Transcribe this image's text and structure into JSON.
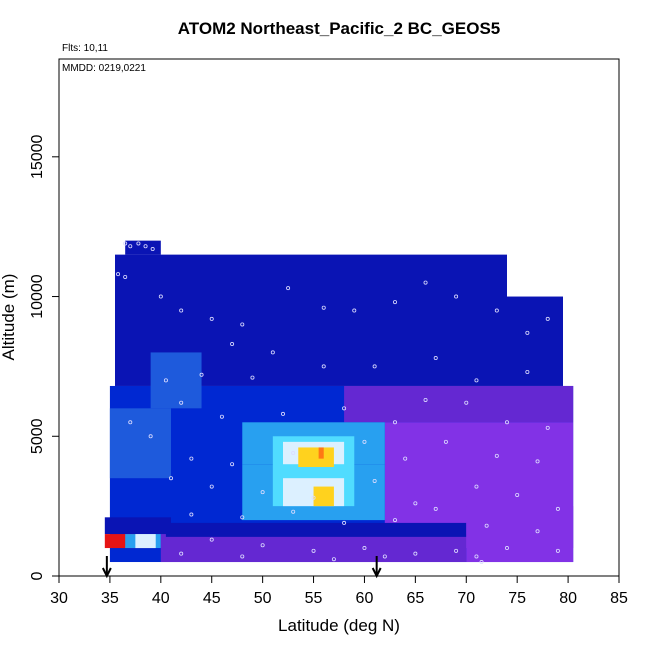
{
  "chart_data": {
    "type": "heatmap",
    "title": "ATOM2 Northeast_Pacific_2 BC_GEOS5",
    "annotations": [
      "Flts: 10,11",
      "MMDD: 0219,0221"
    ],
    "xlabel": "Latitude (deg N)",
    "ylabel": "Altitude (m)",
    "xlim": [
      30,
      85
    ],
    "ylim": [
      0,
      18500
    ],
    "xticks": [
      "30",
      "35",
      "40",
      "45",
      "50",
      "55",
      "60",
      "65",
      "70",
      "75",
      "80",
      "85"
    ],
    "yticks": [
      "0",
      "5000",
      "10000",
      "15000"
    ],
    "ytick_values": [
      0,
      5000,
      10000,
      15000
    ],
    "grid": false,
    "arrows_at_latitude": [
      34.7,
      61.2
    ],
    "colors": {
      "dark_blue": "#0a14b4",
      "blue": "#0028d2",
      "mid_blue": "#1e5adc",
      "light_blue": "#28a0f0",
      "cyan": "#50dcff",
      "pale": "#dcf0ff",
      "yellow": "#ffd21e",
      "orange": "#ff7814",
      "red": "#e61414",
      "purple": "#6428d2",
      "violet": "#8232e6",
      "marker": "#dcdcff"
    },
    "regions": [
      {
        "lat": [
          35.5,
          74.0
        ],
        "alt": [
          6800,
          11500
        ],
        "color": "dark_blue"
      },
      {
        "lat": [
          36.5,
          40.0
        ],
        "alt": [
          11500,
          12000
        ],
        "color": "dark_blue"
      },
      {
        "lat": [
          74.0,
          79.5
        ],
        "alt": [
          6800,
          10000
        ],
        "color": "dark_blue"
      },
      {
        "lat": [
          35.0,
          80.5
        ],
        "alt": [
          500,
          6800
        ],
        "color": "blue"
      },
      {
        "lat": [
          39.0,
          44.0
        ],
        "alt": [
          6000,
          8000
        ],
        "color": "mid_blue"
      },
      {
        "lat": [
          58.0,
          80.5
        ],
        "alt": [
          5500,
          6800
        ],
        "color": "purple"
      },
      {
        "lat": [
          62.0,
          80.5
        ],
        "alt": [
          1000,
          5500
        ],
        "color": "violet"
      },
      {
        "lat": [
          48.0,
          62.0
        ],
        "alt": [
          4000,
          5500
        ],
        "color": "light_blue"
      },
      {
        "lat": [
          48.0,
          62.0
        ],
        "alt": [
          2000,
          4000
        ],
        "color": "light_blue"
      },
      {
        "lat": [
          35.0,
          41.0
        ],
        "alt": [
          3500,
          6000
        ],
        "color": "mid_blue"
      },
      {
        "lat": [
          51.0,
          59.0
        ],
        "alt": [
          2500,
          5000
        ],
        "color": "cyan"
      },
      {
        "lat": [
          52.0,
          58.0
        ],
        "alt": [
          4000,
          4800
        ],
        "color": "pale"
      },
      {
        "lat": [
          52.0,
          58.0
        ],
        "alt": [
          2500,
          3500
        ],
        "color": "pale"
      },
      {
        "lat": [
          53.5,
          57.0
        ],
        "alt": [
          3900,
          4600
        ],
        "color": "yellow"
      },
      {
        "lat": [
          55.0,
          57.0
        ],
        "alt": [
          2500,
          3200
        ],
        "color": "yellow"
      },
      {
        "lat": [
          55.5,
          56.0
        ],
        "alt": [
          4200,
          4600
        ],
        "color": "orange"
      },
      {
        "lat": [
          34.5,
          41.0
        ],
        "alt": [
          1500,
          2100
        ],
        "color": "dark_blue"
      },
      {
        "lat": [
          34.5,
          39.0
        ],
        "alt": [
          1000,
          1500
        ],
        "color": "red"
      },
      {
        "lat": [
          36.5,
          40.0
        ],
        "alt": [
          1000,
          1500
        ],
        "color": "light_blue"
      },
      {
        "lat": [
          37.5,
          39.5
        ],
        "alt": [
          1000,
          1500
        ],
        "color": "pale"
      },
      {
        "lat": [
          40.0,
          70.0
        ],
        "alt": [
          500,
          1500
        ],
        "color": "purple"
      },
      {
        "lat": [
          40.5,
          70.0
        ],
        "alt": [
          1400,
          1900
        ],
        "color": "dark_blue"
      },
      {
        "lat": [
          70.0,
          80.5
        ],
        "alt": [
          500,
          2500
        ],
        "color": "violet"
      }
    ],
    "points": [
      [
        36.5,
        11900
      ],
      [
        37.0,
        11800
      ],
      [
        37.8,
        11900
      ],
      [
        38.5,
        11800
      ],
      [
        39.2,
        11700
      ],
      [
        35.8,
        10800
      ],
      [
        36.5,
        10700
      ],
      [
        40.0,
        10000
      ],
      [
        42.0,
        9500
      ],
      [
        45.0,
        9200
      ],
      [
        48.0,
        9000
      ],
      [
        52.5,
        10300
      ],
      [
        56.0,
        9600
      ],
      [
        59.0,
        9500
      ],
      [
        63.0,
        9800
      ],
      [
        66.0,
        10500
      ],
      [
        69.0,
        10000
      ],
      [
        73.0,
        9500
      ],
      [
        78.0,
        9200
      ],
      [
        76.0,
        8700
      ],
      [
        47.0,
        8300
      ],
      [
        51.0,
        8000
      ],
      [
        56.0,
        7500
      ],
      [
        61.0,
        7500
      ],
      [
        67.0,
        7800
      ],
      [
        71.0,
        7000
      ],
      [
        76.0,
        7300
      ],
      [
        40.5,
        7000
      ],
      [
        44.0,
        7200
      ],
      [
        49.0,
        7100
      ],
      [
        42.0,
        6200
      ],
      [
        46.0,
        5700
      ],
      [
        52.0,
        5800
      ],
      [
        58.0,
        6000
      ],
      [
        63.0,
        5500
      ],
      [
        66.0,
        6300
      ],
      [
        70.0,
        6200
      ],
      [
        74.0,
        5500
      ],
      [
        78.0,
        5300
      ],
      [
        37.0,
        5500
      ],
      [
        39.0,
        5000
      ],
      [
        43.0,
        4200
      ],
      [
        47.0,
        4000
      ],
      [
        53.0,
        4400
      ],
      [
        60.0,
        4800
      ],
      [
        64.0,
        4200
      ],
      [
        68.0,
        4800
      ],
      [
        73.0,
        4300
      ],
      [
        77.0,
        4100
      ],
      [
        41.0,
        3500
      ],
      [
        45.0,
        3200
      ],
      [
        50.0,
        3000
      ],
      [
        55.0,
        2800
      ],
      [
        61.0,
        3400
      ],
      [
        65.0,
        2600
      ],
      [
        71.0,
        3200
      ],
      [
        75.0,
        2900
      ],
      [
        79.0,
        2400
      ],
      [
        43.0,
        2200
      ],
      [
        48.0,
        2100
      ],
      [
        53.0,
        2300
      ],
      [
        58.0,
        1900
      ],
      [
        63.0,
        2000
      ],
      [
        67.0,
        2400
      ],
      [
        72.0,
        1800
      ],
      [
        77.0,
        1600
      ],
      [
        45.0,
        1300
      ],
      [
        50.0,
        1100
      ],
      [
        55.0,
        900
      ],
      [
        60.0,
        1000
      ],
      [
        65.0,
        800
      ],
      [
        71.0,
        700
      ],
      [
        74.0,
        1000
      ],
      [
        79.0,
        900
      ],
      [
        42.0,
        800
      ],
      [
        48.0,
        700
      ],
      [
        57.0,
        600
      ],
      [
        62.0,
        700
      ],
      [
        69.0,
        900
      ],
      [
        71.5,
        500
      ]
    ]
  }
}
